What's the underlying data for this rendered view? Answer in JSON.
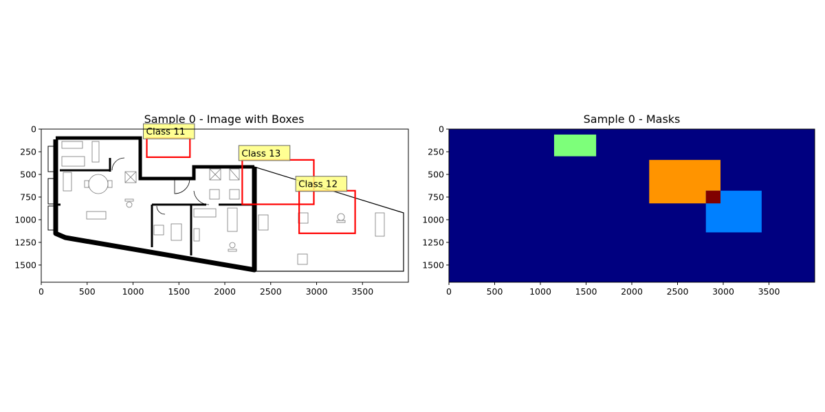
{
  "chart_data": [
    {
      "type": "image",
      "title": "Sample 0 - Image with Boxes",
      "xlim": [
        0,
        4000
      ],
      "ylim": [
        1690,
        0
      ],
      "xticks": [
        0,
        500,
        1000,
        1500,
        2000,
        2500,
        3000,
        3500
      ],
      "yticks": [
        0,
        250,
        500,
        750,
        1000,
        1250,
        1500
      ],
      "boxes": [
        {
          "label": "Class 11",
          "x0": 1150,
          "y0": 100,
          "x1": 1620,
          "y1": 310
        },
        {
          "label": "Class 13",
          "x0": 2190,
          "y0": 340,
          "x1": 2970,
          "y1": 830
        },
        {
          "label": "Class 12",
          "x0": 2810,
          "y0": 680,
          "x1": 3420,
          "y1": 1150
        }
      ],
      "box_color": "#ff0000",
      "label_bg": "#ffff80"
    },
    {
      "type": "heatmap",
      "title": "Sample 0 - Masks",
      "xlim": [
        0,
        4000
      ],
      "ylim": [
        1690,
        0
      ],
      "xticks": [
        0,
        500,
        1000,
        1500,
        2000,
        2500,
        3000,
        3500
      ],
      "yticks": [
        0,
        250,
        500,
        750,
        1000,
        1250,
        1500
      ],
      "background": "#000080",
      "masks": [
        {
          "x0": 1150,
          "y0": 60,
          "x1": 1610,
          "y1": 300,
          "color": "#7dff7a"
        },
        {
          "x0": 2190,
          "y0": 340,
          "x1": 2970,
          "y1": 820,
          "color": "#ff9400"
        },
        {
          "x0": 2810,
          "y0": 680,
          "x1": 3420,
          "y1": 1140,
          "color": "#0080ff"
        },
        {
          "x0": 2810,
          "y0": 680,
          "x1": 2970,
          "y1": 820,
          "color": "#800000"
        }
      ]
    }
  ]
}
